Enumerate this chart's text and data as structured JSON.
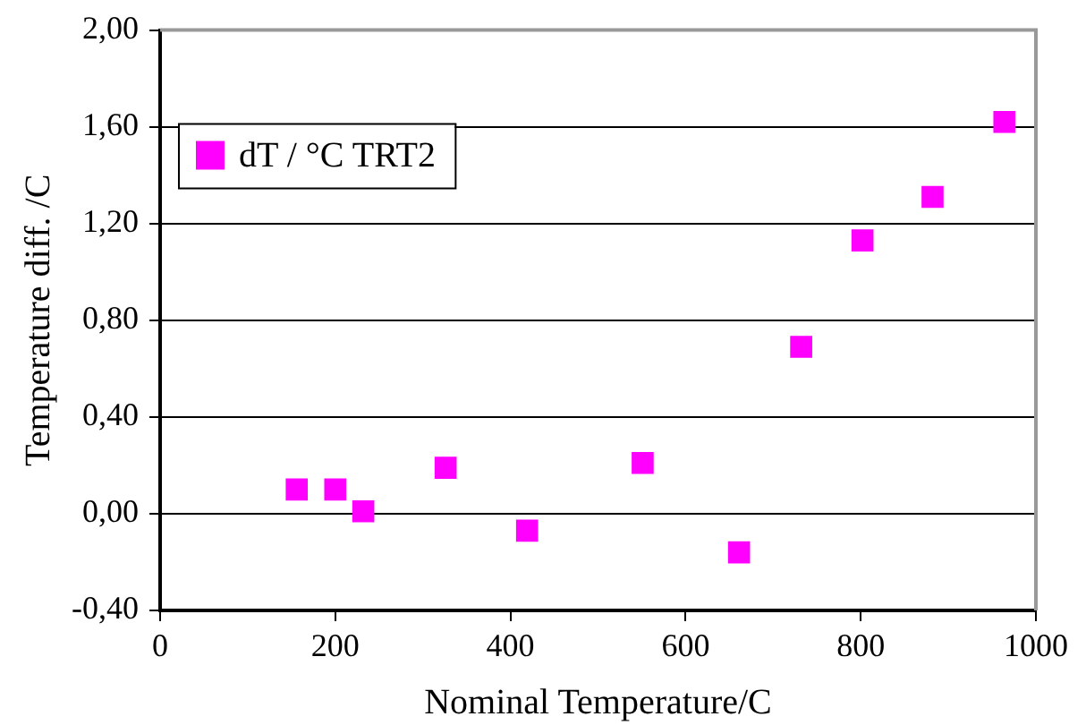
{
  "chart_data": {
    "type": "scatter",
    "xlabel": "Nominal Temperature/C",
    "ylabel": "Temperature diff. /C",
    "xlim": [
      0,
      1000
    ],
    "xticks": [
      0,
      200,
      400,
      600,
      800,
      1000
    ],
    "ylim": [
      -0.4,
      2
    ],
    "yticks": [
      {
        "value": -0.4,
        "label": "-0,40"
      },
      {
        "value": 0,
        "label": "0,00"
      },
      {
        "value": 0.4,
        "label": "0,40"
      },
      {
        "value": 0.8,
        "label": "0,80"
      },
      {
        "value": 1.2,
        "label": "1,20"
      },
      {
        "value": 1.6,
        "label": "1,60"
      },
      {
        "value": 2,
        "label": "2,00"
      }
    ],
    "grid": "y",
    "legend": "top left",
    "marker": "square",
    "series": [
      {
        "name": "dT / °C TRT2",
        "color": "#ff00ff",
        "x": [
          156,
          200,
          232,
          326,
          419,
          551,
          661,
          732,
          802,
          882,
          964
        ],
        "values": [
          0.1,
          0.1,
          0.01,
          0.19,
          -0.07,
          0.21,
          -0.16,
          0.69,
          1.13,
          1.31,
          1.62
        ]
      }
    ]
  }
}
